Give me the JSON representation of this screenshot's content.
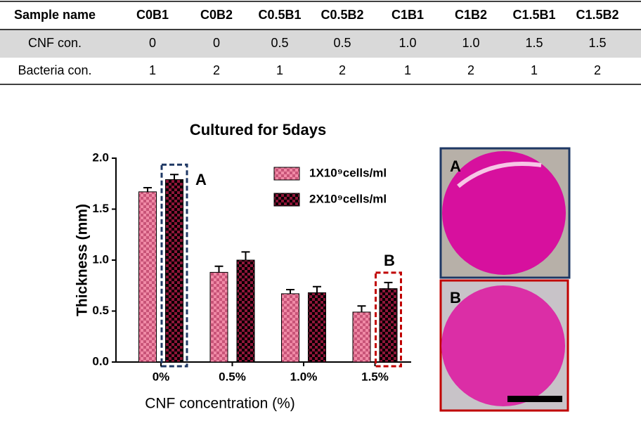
{
  "table": {
    "header": [
      "Sample name",
      "C0B1",
      "C0B2",
      "C0.5B1",
      "C0.5B2",
      "C1B1",
      "C1B2",
      "C1.5B1",
      "C1.5B2"
    ],
    "rows": [
      [
        "CNF con.",
        "0",
        "0",
        "0.5",
        "0.5",
        "1.0",
        "1.0",
        "1.5",
        "1.5"
      ],
      [
        "Bacteria con.",
        "1",
        "2",
        "1",
        "2",
        "1",
        "2",
        "1",
        "2"
      ]
    ]
  },
  "chart_data": {
    "type": "bar",
    "title": "Cultured for 5days",
    "x_label": "CNF concentration (%)",
    "y_label": "Thickness (mm)",
    "categories": [
      "0%",
      "0.5%",
      "1.0%",
      "1.5%"
    ],
    "series": [
      {
        "name": "1X10⁹cells/ml",
        "color": "#f08aa6",
        "values": [
          1.67,
          0.88,
          0.67,
          0.49
        ],
        "errors": [
          0.04,
          0.06,
          0.04,
          0.06
        ]
      },
      {
        "name": "2X10⁹cells/ml",
        "color": "#8e1538",
        "values": [
          1.79,
          1.0,
          0.68,
          0.72
        ],
        "errors": [
          0.05,
          0.08,
          0.06,
          0.06
        ]
      }
    ],
    "ylim": [
      0,
      2
    ],
    "yticks": [
      {
        "value": 0,
        "label": "0.0"
      },
      {
        "value": 0.5,
        "label": "0.5"
      },
      {
        "value": 1,
        "label": "1.0"
      },
      {
        "value": 1.5,
        "label": "1.5"
      },
      {
        "value": 2,
        "label": "2.0"
      }
    ],
    "annotations": [
      "A",
      "B"
    ]
  },
  "photos": [
    "A",
    "B"
  ]
}
